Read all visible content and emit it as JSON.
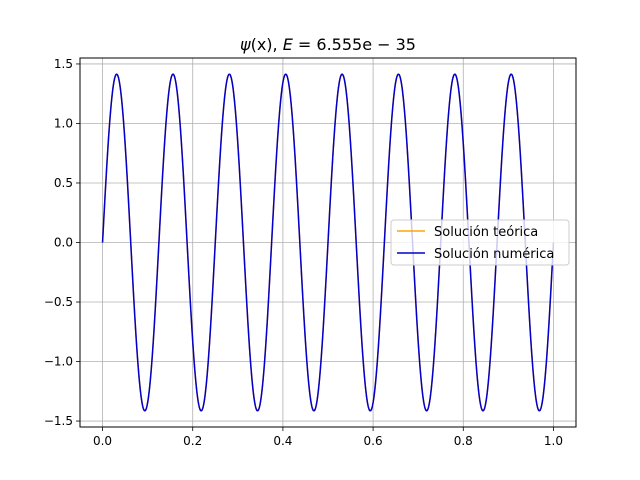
{
  "chart_data": {
    "type": "line",
    "title": "ψ(x), E = 6.555e − 35",
    "title_parts": {
      "psi": "ψ",
      "arg": "(x), ",
      "e_var": "E",
      "rest": " = 6.555e − 35"
    },
    "xlabel": "",
    "ylabel": "",
    "xlim": [
      -0.05,
      1.05
    ],
    "ylim": [
      -1.55,
      1.55
    ],
    "x_ticks": [
      0.0,
      0.2,
      0.4,
      0.6,
      0.8,
      1.0
    ],
    "x_tick_labels": [
      "0.0",
      "0.2",
      "0.4",
      "0.6",
      "0.8",
      "1.0"
    ],
    "y_ticks": [
      -1.5,
      -1.0,
      -0.5,
      0.0,
      0.5,
      1.0,
      1.5
    ],
    "y_tick_labels": [
      "−1.5",
      "−1.0",
      "−0.5",
      "0.0",
      "0.5",
      "1.0",
      "1.5"
    ],
    "grid": true,
    "legend_position": "center-right",
    "function": "sqrt(2) * sin(16 * pi * x)",
    "x_range": [
      0,
      1
    ],
    "amplitude": 1.414,
    "half_waves": 16,
    "series": [
      {
        "name": "Solución teórica",
        "color": "#ffa500"
      },
      {
        "name": "Solución numérica",
        "color": "#0000cd"
      }
    ]
  }
}
